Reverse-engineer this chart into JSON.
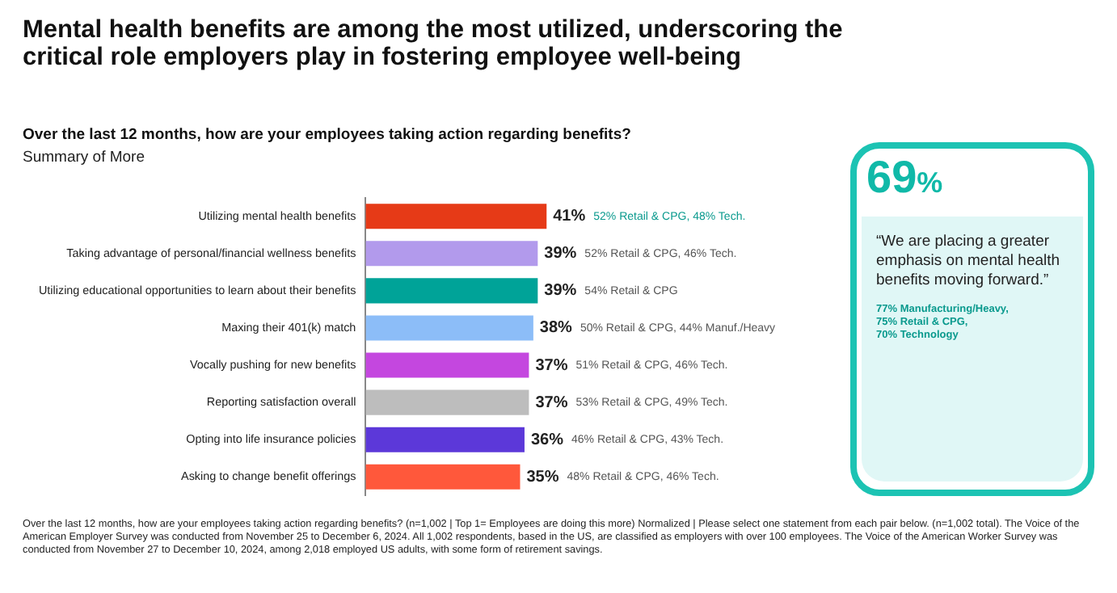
{
  "chart_data": [
    {
      "type": "bar",
      "orientation": "horizontal",
      "title": "Mental health benefits are among the most utilized, underscoring the critical role employers play in fostering employee well-being",
      "subtitle": "Over the last 12 months, how are your employees taking action regarding benefits?",
      "categories": [
        "Utilizing mental health benefits",
        "Taking advantage of personal/financial wellness benefits",
        "Utilizing educational opportunities to learn about their benefits",
        "Maxing their 401(k) match",
        "Vocally pushing for new benefits",
        "Reporting satisfaction overall",
        "Opting into life insurance policies",
        "Asking to change benefit offerings"
      ],
      "values": [
        41,
        39,
        39,
        38,
        37,
        37,
        36,
        35
      ],
      "colors": [
        "#e63a17",
        "#b29aec",
        "#00a398",
        "#8cbdf8",
        "#c447df",
        "#bdbdbd",
        "#5c38d9",
        "#ff583b"
      ],
      "value_labels": [
        "41%",
        "39%",
        "39%",
        "38%",
        "37%",
        "37%",
        "36%",
        "35%"
      ],
      "tick_labels": "y",
      "legend": false,
      "annotations": [
        "Summary of More",
        "Over the last 12 months, how are your employees taking action regarding benefits? (n=1,002 | Top 1= Employees are doing this more) Normalized | Please select one statement from each pair below. (n=1,002 total). The Voice of the American Employer Survey was conducted from November 25 to December 6, 2024. All 1,002 respondents, based in the US, are classified as employers with over 100 employees. The Voice of the American Worker Survey was conducted from November 27 to December 10, 2024, among 2,018 employed US adults, with some form of retirement savings.",
        "52% Retail & CPG, 48% Tech.",
        "52% Retail & CPG, 46% Tech.",
        "54% Retail & CPG",
        "50% Retail & CPG, 44% Manuf./Heavy",
        "51% Retail & CPG, 46% Tech.",
        "53% Retail & CPG, 49% Tech.",
        "46% Retail & CPG, 43% Tech.",
        "48% Retail & CPG, 46% Tech."
      ]
    },
    {
      "type": "other",
      "title": "69%",
      "annotations": [
        "“We are placing a greater emphasis on mental health benefits moving forward.”",
        "77% Manufacturing/Heavy,\n75% Retail & CPG,\n70% Technology"
      ]
    }
  ]
}
